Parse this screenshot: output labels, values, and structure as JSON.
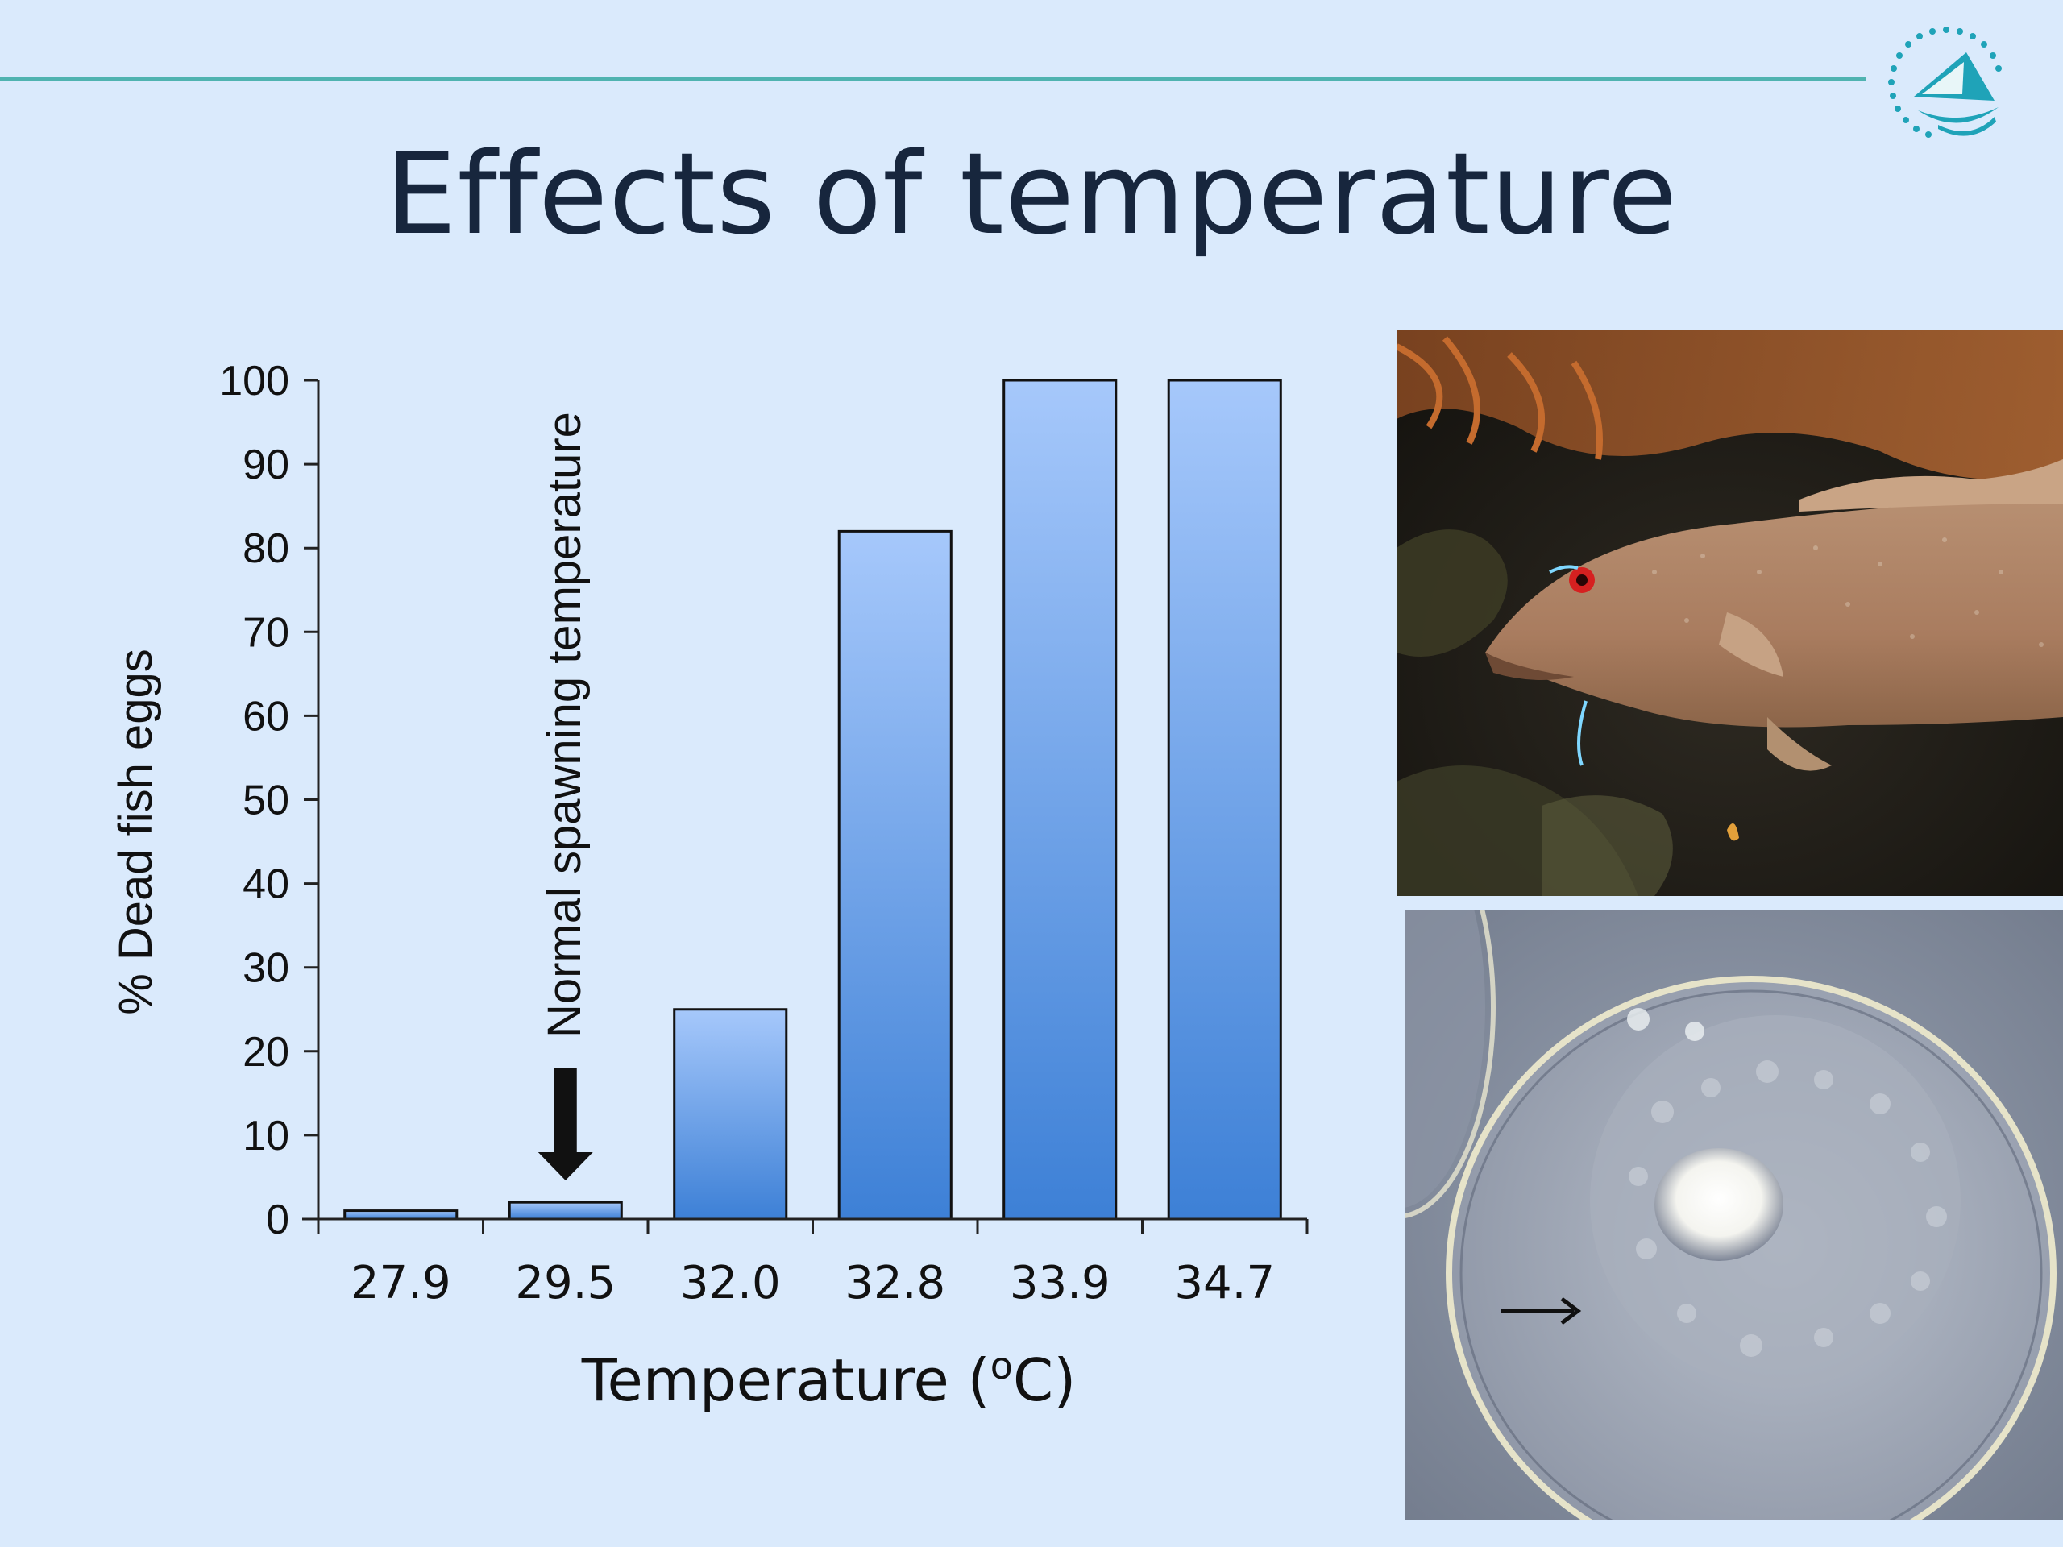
{
  "slide": {
    "title": "Effects of temperature",
    "logo_icon": "sailboat-circle-logo-icon",
    "accent_color": "#4fb3b0",
    "background_color": "#daeafc"
  },
  "chart_data": {
    "type": "bar",
    "title": "",
    "xlabel": "Temperature (oC)",
    "xlabel_main": "Temperature (",
    "xlabel_sup": "o",
    "xlabel_end": "C)",
    "ylabel": "% Dead fish eggs",
    "categories": [
      "27.9",
      "29.5",
      "32.0",
      "32.8",
      "33.9",
      "34.7"
    ],
    "values": [
      1,
      2,
      25,
      82,
      100,
      100
    ],
    "ylim": [
      0,
      100
    ],
    "yticks": [
      "0",
      "10",
      "20",
      "30",
      "40",
      "50",
      "60",
      "70",
      "80",
      "90",
      "100"
    ],
    "grid": false,
    "legend": "none",
    "bar_color_top": "#a6c8fb",
    "bar_color_bottom": "#3d80d6",
    "annotation": {
      "text": "Normal spawning temperature",
      "category": "29.5",
      "icon": "down-arrow-icon"
    }
  },
  "photos": [
    {
      "name": "grouper-fish-photo",
      "icon": "fish-photo"
    },
    {
      "name": "fish-egg-micrograph",
      "icon": "egg-photo",
      "marker_icon": "right-arrow-icon"
    }
  ]
}
